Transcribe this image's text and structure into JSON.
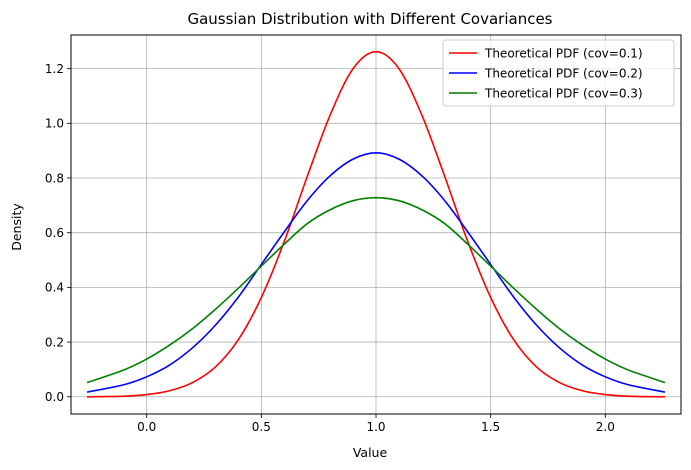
{
  "chart_data": {
    "type": "line",
    "title": "Gaussian Distribution with Different Covariances",
    "xlabel": "Value",
    "ylabel": "Density",
    "xlim": [
      -0.33,
      2.33
    ],
    "ylim": [
      -0.063,
      1.323
    ],
    "xticks": [
      0.0,
      0.5,
      1.0,
      1.5,
      2.0
    ],
    "xtick_labels": [
      "0.0",
      "0.5",
      "1.0",
      "1.5",
      "2.0"
    ],
    "yticks": [
      0.0,
      0.2,
      0.4,
      0.6,
      0.8,
      1.0,
      1.2
    ],
    "ytick_labels": [
      "0.0",
      "0.2",
      "0.4",
      "0.6",
      "0.8",
      "1.0",
      "1.2"
    ],
    "grid": true,
    "legend_position": "top-right",
    "series": [
      {
        "name": "Theoretical PDF (cov=0.1)",
        "color": "#ff0000",
        "x": [
          -0.26,
          -0.1,
          0.0,
          0.1,
          0.2,
          0.3,
          0.4,
          0.5,
          0.6,
          0.7,
          0.8,
          0.9,
          1.0,
          1.1,
          1.2,
          1.3,
          1.4,
          1.5,
          1.6,
          1.7,
          1.8,
          1.9,
          2.0,
          2.1,
          2.26
        ],
        "y": [
          0.0,
          0.002,
          0.008,
          0.022,
          0.052,
          0.109,
          0.209,
          0.363,
          0.568,
          0.805,
          1.03,
          1.2,
          1.262,
          1.2,
          1.03,
          0.805,
          0.568,
          0.363,
          0.209,
          0.109,
          0.052,
          0.022,
          0.008,
          0.002,
          0.0
        ]
      },
      {
        "name": "Theoretical PDF (cov=0.2)",
        "color": "#0000ff",
        "x": [
          -0.26,
          -0.1,
          0.0,
          0.1,
          0.2,
          0.3,
          0.4,
          0.5,
          0.6,
          0.7,
          0.8,
          0.9,
          1.0,
          1.1,
          1.2,
          1.3,
          1.4,
          1.5,
          1.6,
          1.7,
          1.8,
          1.9,
          2.0,
          2.1,
          2.26
        ],
        "y": [
          0.017,
          0.044,
          0.073,
          0.116,
          0.179,
          0.262,
          0.365,
          0.484,
          0.603,
          0.717,
          0.808,
          0.869,
          0.892,
          0.869,
          0.808,
          0.717,
          0.603,
          0.484,
          0.365,
          0.262,
          0.179,
          0.116,
          0.073,
          0.044,
          0.017
        ]
      },
      {
        "name": "Theoretical PDF (cov=0.3)",
        "color": "#008000",
        "x": [
          -0.26,
          -0.1,
          0.0,
          0.1,
          0.2,
          0.3,
          0.4,
          0.5,
          0.6,
          0.7,
          0.8,
          0.9,
          1.0,
          1.1,
          1.2,
          1.3,
          1.4,
          1.5,
          1.6,
          1.7,
          1.8,
          1.9,
          2.0,
          2.1,
          2.26
        ],
        "y": [
          0.052,
          0.098,
          0.138,
          0.189,
          0.249,
          0.32,
          0.397,
          0.478,
          0.558,
          0.633,
          0.684,
          0.717,
          0.728,
          0.717,
          0.684,
          0.633,
          0.558,
          0.478,
          0.397,
          0.32,
          0.249,
          0.189,
          0.138,
          0.098,
          0.052
        ]
      }
    ]
  }
}
